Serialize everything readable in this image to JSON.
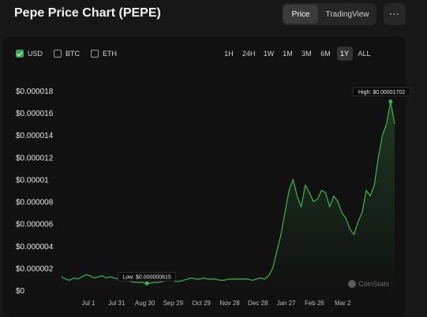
{
  "header": {
    "title": "Pepe Price Chart (PEPE)"
  },
  "view_toggle": {
    "price": "Price",
    "tradingview": "TradingView"
  },
  "more_label": "⋯",
  "currencies": [
    {
      "label": "USD",
      "checked": true
    },
    {
      "label": "BTC",
      "checked": false
    },
    {
      "label": "ETH",
      "checked": false
    }
  ],
  "ranges": [
    "1H",
    "24H",
    "1W",
    "1M",
    "3M",
    "6M",
    "1Y",
    "ALL"
  ],
  "active_range": "1Y",
  "watermark": "CoinStats",
  "colors": {
    "line": "#3fb34f",
    "accent": "#3aa84f",
    "background": "#171717"
  },
  "chart_data": {
    "type": "area",
    "y_ticks": [
      "$0",
      "$0.000002",
      "$0.000004",
      "$0.000006",
      "$0.000008",
      "$0.00001",
      "$0.000012",
      "$0.000014",
      "$0.000016",
      "$0.000018"
    ],
    "y_tick_values": [
      0,
      2e-06,
      4e-06,
      6e-06,
      8e-06,
      1e-05,
      1.2e-05,
      1.4e-05,
      1.6e-05,
      1.8e-05
    ],
    "x_ticks": [
      "Jul 1",
      "Jul 31",
      "Aug 30",
      "Sep 29",
      "Oct 29",
      "Nov 28",
      "Dec 28",
      "Jan 27",
      "Feb 26",
      "Mar 2"
    ],
    "x": [
      "Jun 12",
      "Jun 17",
      "Jun 22",
      "Jun 27",
      "Jul 1",
      "Jul 6",
      "Jul 11",
      "Jul 16",
      "Jul 21",
      "Jul 26",
      "Jul 31",
      "Aug 5",
      "Aug 10",
      "Aug 15",
      "Aug 20",
      "Aug 25",
      "Aug 30",
      "Sep 4",
      "Sep 9",
      "Sep 14",
      "Sep 19",
      "Sep 24",
      "Sep 29",
      "Oct 4",
      "Oct 9",
      "Oct 14",
      "Oct 19",
      "Oct 24",
      "Oct 29",
      "Nov 3",
      "Nov 8",
      "Nov 13",
      "Nov 18",
      "Nov 23",
      "Nov 28",
      "Dec 3",
      "Dec 8",
      "Dec 13",
      "Dec 18",
      "Dec 23",
      "Dec 28",
      "Jan 2",
      "Jan 7",
      "Jan 12",
      "Jan 17",
      "Jan 22",
      "Jan 27",
      "Feb 1",
      "Feb 6",
      "Feb 11",
      "Feb 16",
      "Feb 19",
      "Feb 22",
      "Feb 24",
      "Feb 26",
      "Feb 28",
      "Mar 1",
      "Mar 3",
      "Mar 5",
      "Mar 7",
      "Mar 9",
      "Mar 11",
      "Mar 13",
      "Mar 15",
      "Mar 17",
      "Mar 19",
      "Mar 21",
      "Mar 23",
      "Mar 25",
      "Mar 27",
      "Mar 29",
      "Mar 31",
      "Apr 2",
      "Apr 4",
      "Apr 6",
      "Apr 8",
      "Apr 10",
      "Apr 12",
      "Apr 14",
      "Apr 16",
      "Apr 18",
      "Apr 20",
      "Apr 22"
    ],
    "values": [
      1.2e-06,
      1e-06,
      9e-07,
      1.1e-06,
      1e-06,
      1.2e-06,
      1.4e-06,
      1.3e-06,
      1.1e-06,
      1.2e-06,
      1.3e-06,
      1.1e-06,
      1.2e-06,
      1.1e-06,
      1e-06,
      9e-07,
      9e-07,
      8e-07,
      7e-07,
      7e-07,
      7e-07,
      6e-07,
      6.5e-07,
      7e-07,
      7e-07,
      8e-07,
      9e-07,
      9e-07,
      8e-07,
      8e-07,
      9e-07,
      1e-06,
      1.1e-06,
      1e-06,
      1e-06,
      1.1e-06,
      1e-06,
      1e-06,
      1e-06,
      9e-07,
      9e-07,
      1e-06,
      1e-06,
      1e-06,
      1e-06,
      1e-06,
      1e-06,
      9e-07,
      1e-06,
      1.1e-06,
      1e-06,
      1.3e-06,
      2e-06,
      3.5e-06,
      5e-06,
      7e-06,
      9e-06,
      1e-05,
      8.5e-06,
      7.5e-06,
      9.5e-06,
      8.8e-06,
      8e-06,
      8.2e-06,
      9e-06,
      8.8e-06,
      7.5e-06,
      8.5e-06,
      8e-06,
      7e-06,
      6.5e-06,
      5.5e-06,
      5e-06,
      6.2e-06,
      7e-06,
      9e-06,
      8.5e-06,
      9.5e-06,
      1.2e-05,
      1.4e-05,
      1.5e-05,
      1.702e-05,
      1.5e-05
    ],
    "low": {
      "label": "Low: $0.000000615",
      "value": 6.15e-07,
      "x": "Sep 24"
    },
    "high": {
      "label": "High: $0.00001702",
      "value": 1.702e-05,
      "x": "Apr 20"
    },
    "ylim": [
      0,
      1.8e-05
    ],
    "grid": false,
    "legend": "none"
  }
}
